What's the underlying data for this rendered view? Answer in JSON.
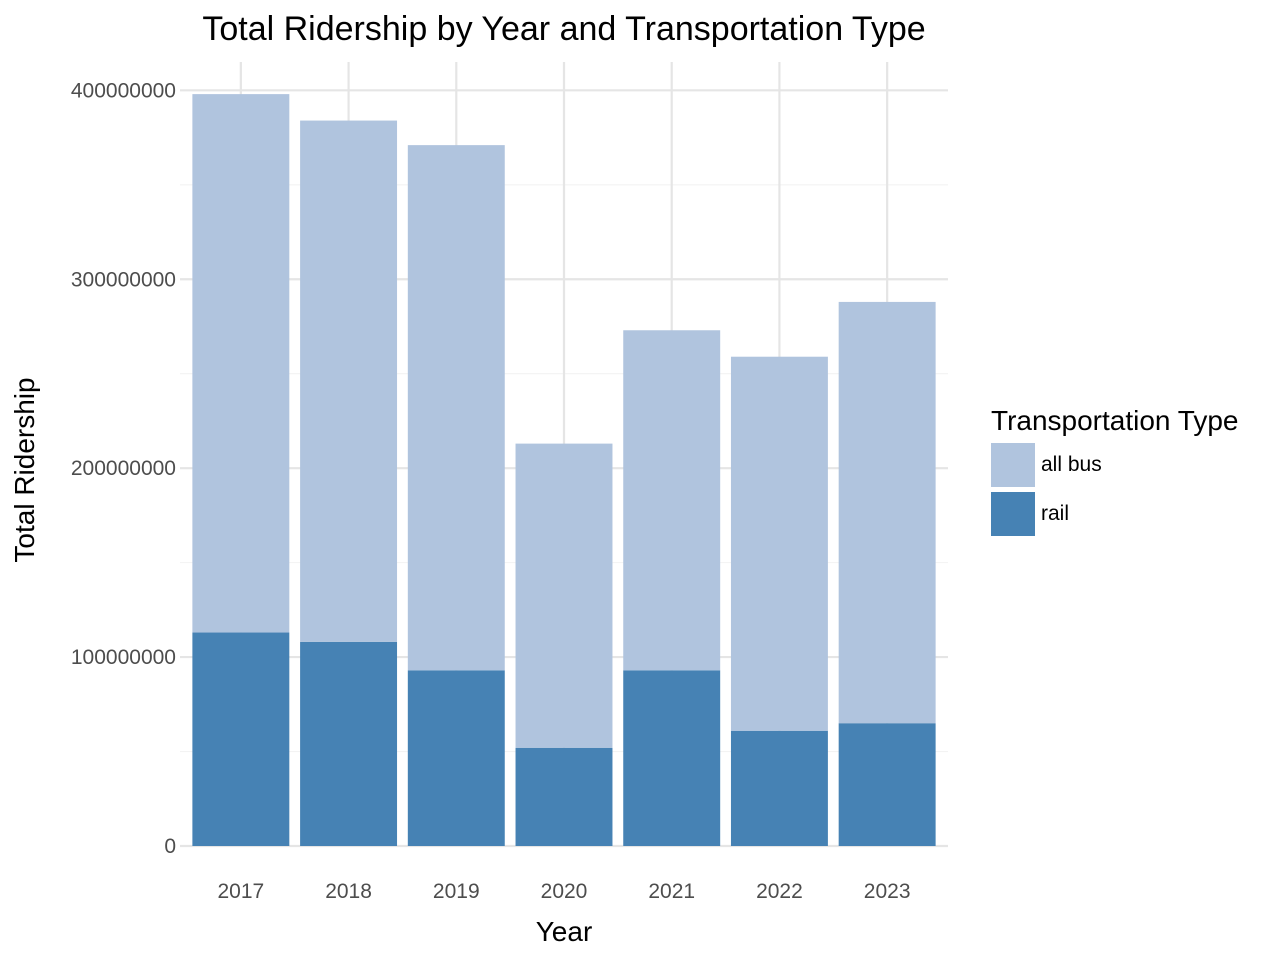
{
  "chart_data": {
    "type": "bar",
    "stacked": true,
    "title": "Total Ridership by Year and Transportation Type",
    "xlabel": "Year",
    "ylabel": "Total Ridership",
    "categories": [
      "2017",
      "2018",
      "2019",
      "2020",
      "2021",
      "2022",
      "2023"
    ],
    "series": [
      {
        "name": "rail",
        "color": "#4682b4",
        "values": [
          113000000,
          108000000,
          93000000,
          52000000,
          93000000,
          61000000,
          65000000
        ]
      },
      {
        "name": "all bus",
        "color": "#b0c4de",
        "values": [
          285000000,
          276000000,
          278000000,
          161000000,
          180000000,
          198000000,
          223000000
        ]
      }
    ],
    "ylim": [
      0,
      415000000
    ],
    "yticks": [
      0,
      100000000,
      200000000,
      300000000,
      400000000
    ],
    "ytick_labels": [
      "0",
      "100000000",
      "200000000",
      "300000000",
      "400000000"
    ],
    "grid": true,
    "legend": {
      "title": "Transportation Type",
      "position": "right",
      "order": [
        "all bus",
        "rail"
      ]
    }
  }
}
